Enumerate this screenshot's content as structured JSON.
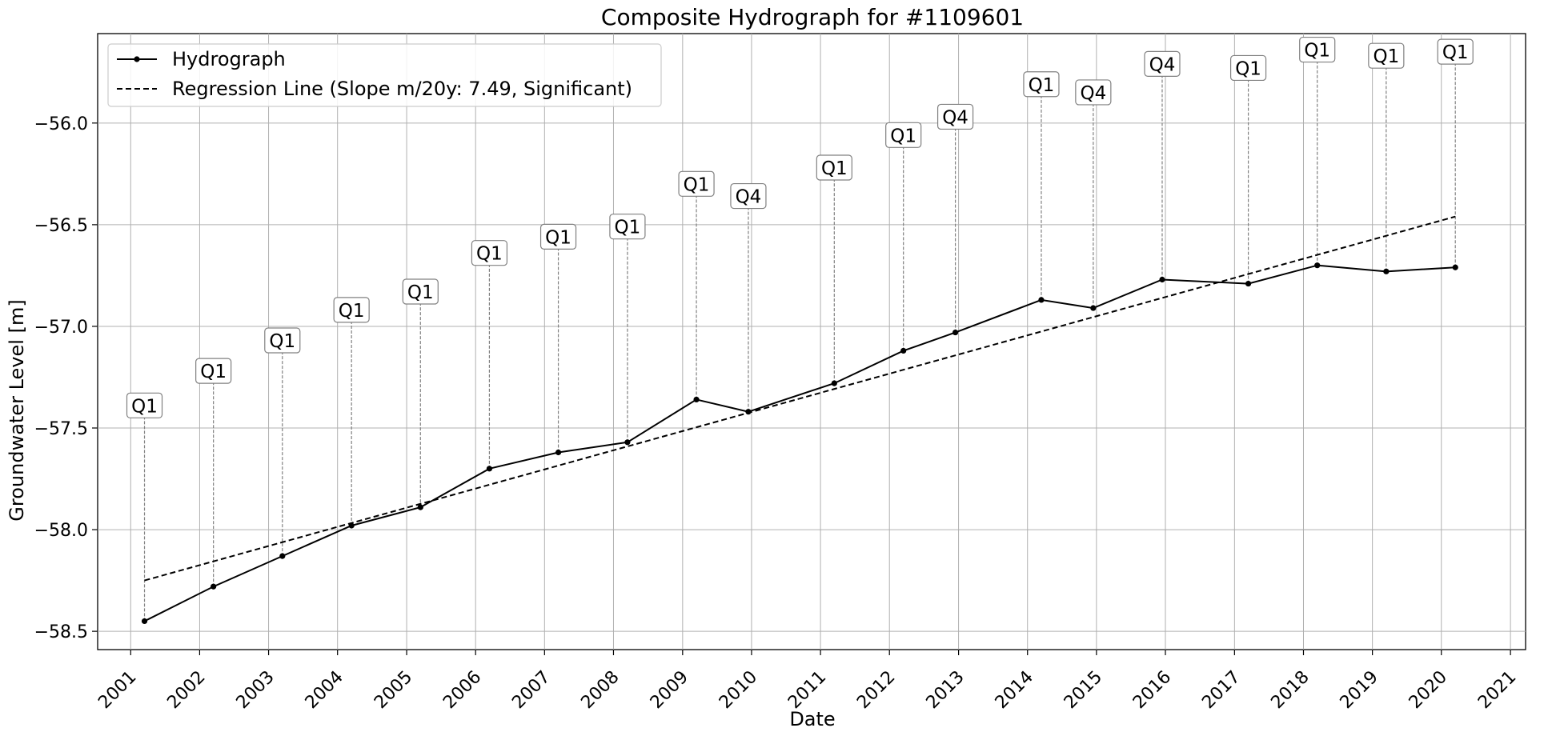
{
  "chart_data": {
    "type": "line",
    "title": "Composite Hydrograph for  #1109601",
    "xlabel": "Date",
    "ylabel": "Groundwater Level [m]",
    "x_ticks": [
      "2001",
      "2002",
      "2003",
      "2004",
      "2005",
      "2006",
      "2007",
      "2008",
      "2009",
      "2010",
      "2011",
      "2012",
      "2013",
      "2014",
      "2015",
      "2016",
      "2017",
      "2018",
      "2019",
      "2020",
      "2021"
    ],
    "y_ticks": [
      "−56.0",
      "−56.5",
      "−57.0",
      "−57.5",
      "−58.0",
      "−58.5"
    ],
    "y_tick_values": [
      -56.0,
      -56.5,
      -57.0,
      -57.5,
      -58.0,
      -58.5
    ],
    "xlim": [
      "2000-07-10",
      "2021-03-22"
    ],
    "ylim": [
      -58.59,
      -55.56
    ],
    "grid": true,
    "legend_position": "top-left",
    "series": [
      {
        "name": "Hydrograph",
        "style": "solid-with-markers",
        "color": "#000000",
        "points": [
          {
            "x": "2001-03-15",
            "y": -58.45,
            "label": "Q1"
          },
          {
            "x": "2002-03-15",
            "y": -58.28,
            "label": "Q1"
          },
          {
            "x": "2003-03-15",
            "y": -58.13,
            "label": "Q1"
          },
          {
            "x": "2004-03-15",
            "y": -57.98,
            "label": "Q1"
          },
          {
            "x": "2005-03-15",
            "y": -57.89,
            "label": "Q1"
          },
          {
            "x": "2006-03-15",
            "y": -57.7,
            "label": "Q1"
          },
          {
            "x": "2007-03-15",
            "y": -57.62,
            "label": "Q1"
          },
          {
            "x": "2008-03-15",
            "y": -57.57,
            "label": "Q1"
          },
          {
            "x": "2009-03-15",
            "y": -57.36,
            "label": "Q1"
          },
          {
            "x": "2009-12-15",
            "y": -57.42,
            "label": "Q4"
          },
          {
            "x": "2011-03-15",
            "y": -57.28,
            "label": "Q1"
          },
          {
            "x": "2012-03-15",
            "y": -57.12,
            "label": "Q1"
          },
          {
            "x": "2012-12-15",
            "y": -57.03,
            "label": "Q4"
          },
          {
            "x": "2014-03-15",
            "y": -56.87,
            "label": "Q1"
          },
          {
            "x": "2014-12-15",
            "y": -56.91,
            "label": "Q4"
          },
          {
            "x": "2015-12-15",
            "y": -56.77,
            "label": "Q4"
          },
          {
            "x": "2017-03-15",
            "y": -56.79,
            "label": "Q1"
          },
          {
            "x": "2018-03-15",
            "y": -56.7,
            "label": "Q1"
          },
          {
            "x": "2019-03-15",
            "y": -56.73,
            "label": "Q1"
          },
          {
            "x": "2020-03-15",
            "y": -56.71,
            "label": "Q1"
          }
        ]
      },
      {
        "name": "Regression Line (Slope m/20y: 7.49, Significant)",
        "style": "dashed",
        "color": "#000000",
        "points": [
          {
            "x": "2001-03-15",
            "y": -58.25
          },
          {
            "x": "2020-03-15",
            "y": -56.46
          }
        ]
      }
    ]
  }
}
